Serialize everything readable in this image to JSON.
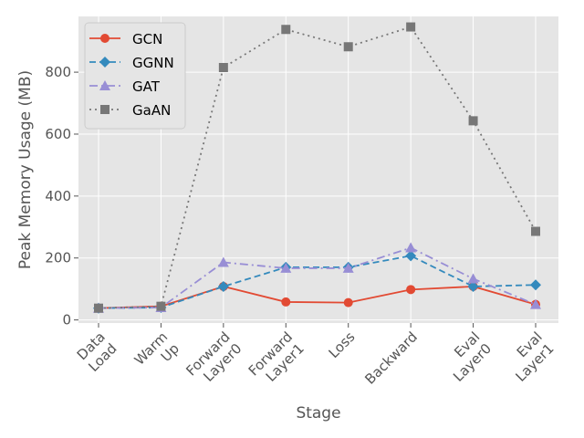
{
  "chart_data": {
    "type": "line",
    "xlabel": "Stage",
    "ylabel": "Peak Memory Usage (MB)",
    "categories": [
      [
        "Data",
        "Load"
      ],
      [
        "Warm",
        "Up"
      ],
      [
        "Forward",
        "Layer0"
      ],
      [
        "Forward",
        "Layer1"
      ],
      [
        "Loss"
      ],
      [
        "Backward"
      ],
      [
        "Eval",
        "Layer0"
      ],
      [
        "Eval",
        "Layer1"
      ]
    ],
    "ylim": [
      -10,
      980
    ],
    "yticks": [
      0,
      200,
      400,
      600,
      800
    ],
    "grid": true,
    "legend_position": "top-left",
    "series": [
      {
        "name": "GCN",
        "color": "#E24A33",
        "marker": "circle",
        "linestyle": "solid",
        "values": [
          38,
          44,
          108,
          58,
          56,
          98,
          108,
          50
        ]
      },
      {
        "name": "GGNN",
        "color": "#348ABD",
        "marker": "diamond",
        "linestyle": "dashed",
        "values": [
          38,
          40,
          108,
          170,
          170,
          207,
          108,
          113
        ]
      },
      {
        "name": "GAT",
        "color": "#988ED5",
        "marker": "triangle",
        "linestyle": "dashdot",
        "values": [
          38,
          40,
          186,
          167,
          167,
          233,
          133,
          50
        ]
      },
      {
        "name": "GaAN",
        "color": "#777777",
        "marker": "square",
        "linestyle": "dotted",
        "values": [
          38,
          44,
          815,
          938,
          882,
          946,
          643,
          286
        ]
      }
    ]
  }
}
